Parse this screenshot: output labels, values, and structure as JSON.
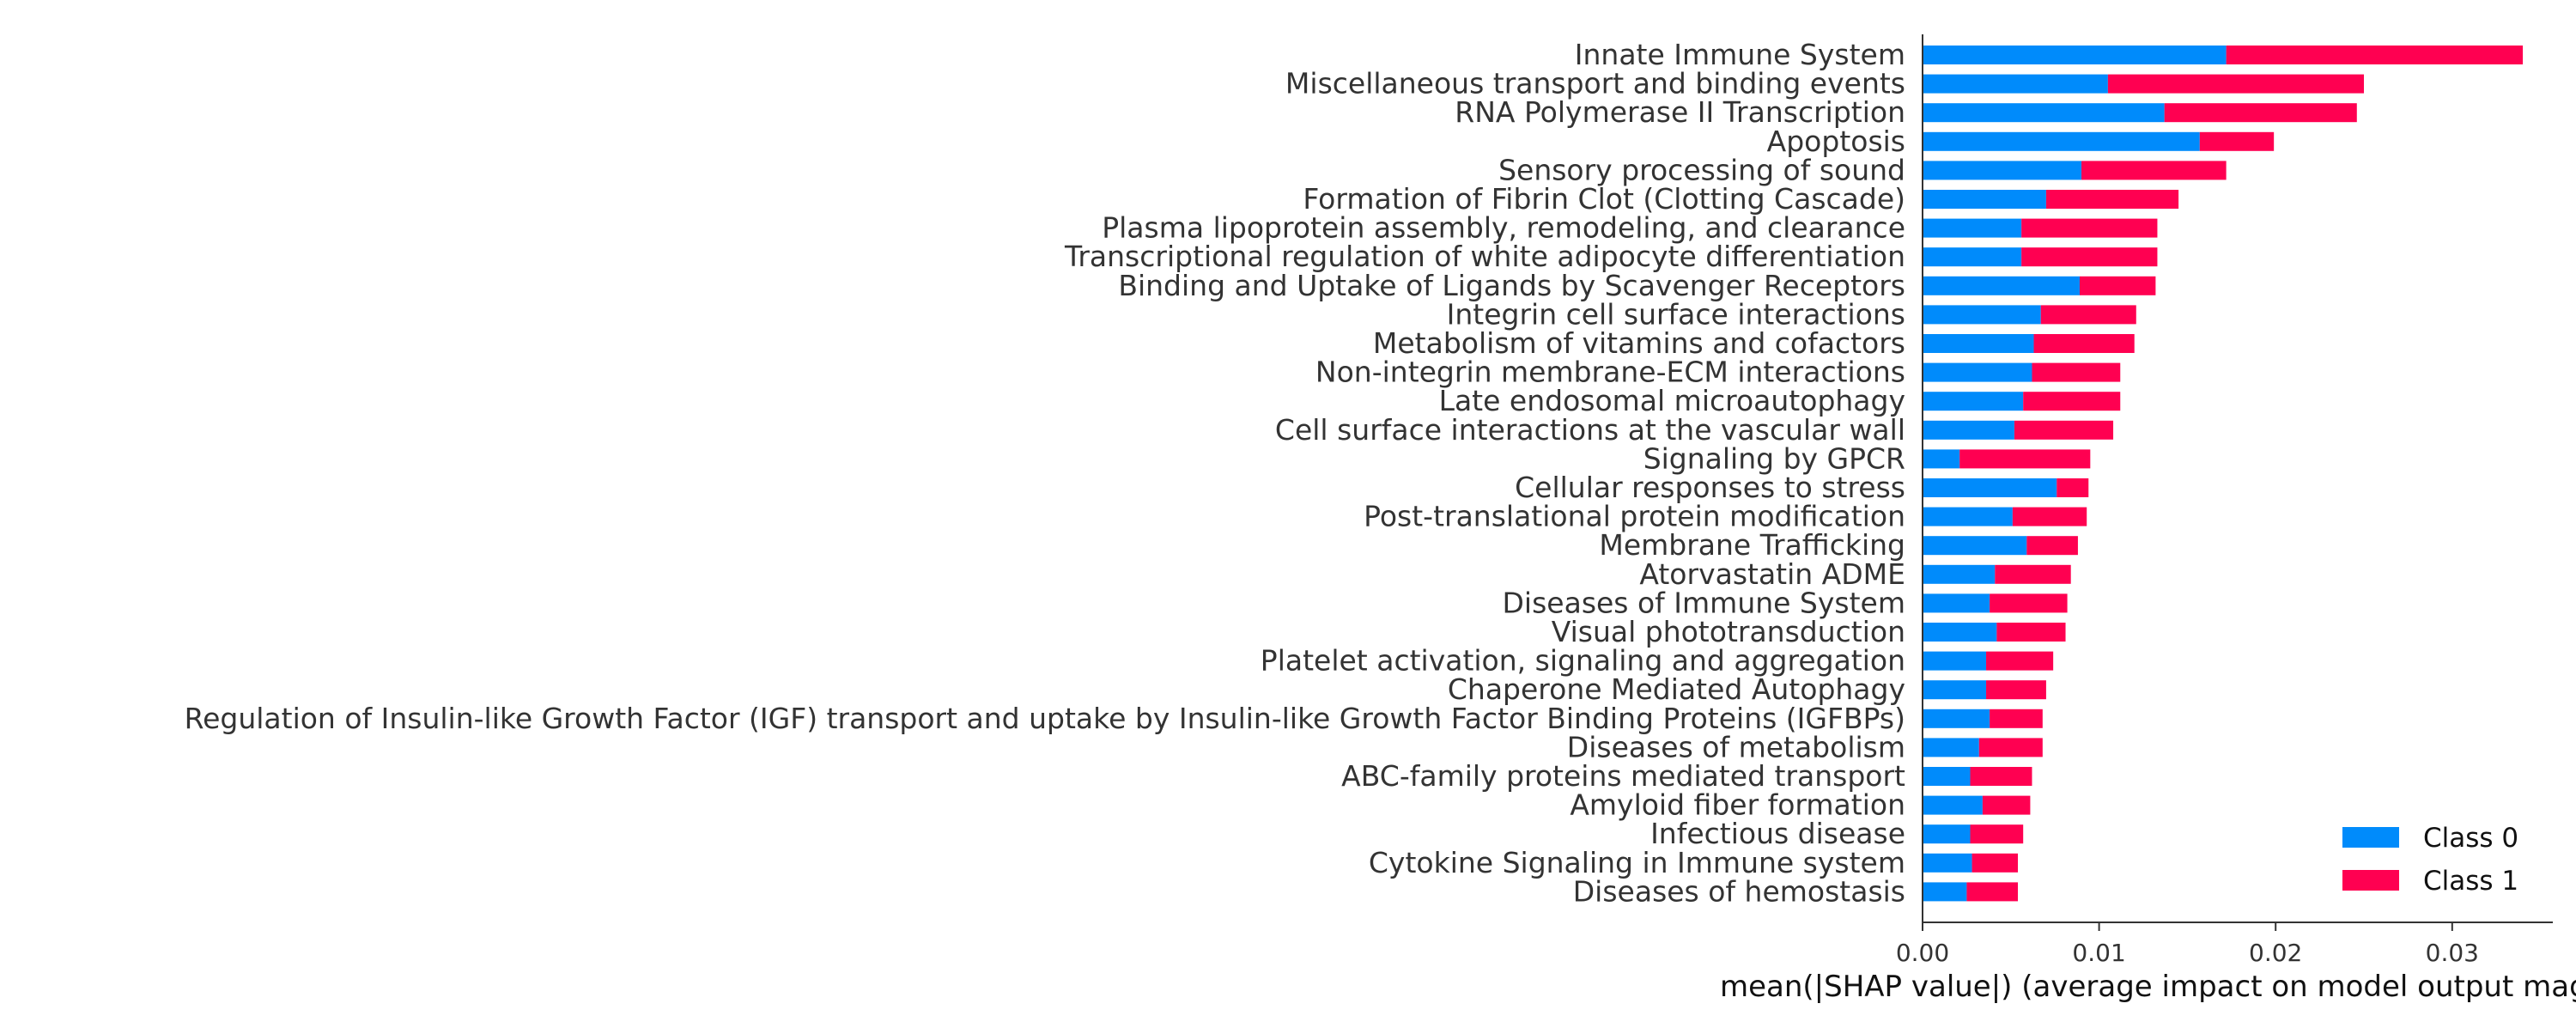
{
  "chart_data": {
    "type": "bar",
    "orientation": "horizontal",
    "stacked": true,
    "categories": [
      "Innate Immune System",
      "Miscellaneous transport and binding events",
      "RNA Polymerase II Transcription",
      "Apoptosis",
      "Sensory processing of sound",
      "Formation of Fibrin Clot (Clotting Cascade)",
      "Plasma lipoprotein assembly, remodeling, and clearance",
      "Transcriptional regulation of white adipocyte differentiation",
      "Binding and Uptake of Ligands by Scavenger Receptors",
      "Integrin cell surface interactions",
      "Metabolism of vitamins and cofactors",
      "Non-integrin membrane-ECM interactions",
      "Late endosomal microautophagy",
      "Cell surface interactions at the vascular wall",
      "Signaling by GPCR",
      "Cellular responses to stress",
      "Post-translational protein modification",
      "Membrane Trafficking",
      "Atorvastatin ADME",
      "Diseases of Immune System",
      "Visual phototransduction",
      "Platelet activation, signaling and aggregation",
      "Chaperone Mediated Autophagy",
      "Regulation of Insulin-like Growth Factor (IGF) transport and uptake by Insulin-like Growth Factor Binding Proteins (IGFBPs)",
      "Diseases of metabolism",
      "ABC-family proteins mediated transport",
      "Amyloid fiber formation",
      "Infectious disease",
      "Cytokine Signaling in Immune system",
      "Diseases of hemostasis"
    ],
    "series": [
      {
        "name": "Class 0",
        "color": "#008bfb",
        "values": [
          0.0172,
          0.0105,
          0.0137,
          0.0157,
          0.009,
          0.007,
          0.0056,
          0.0056,
          0.0089,
          0.0067,
          0.0063,
          0.0062,
          0.0057,
          0.0052,
          0.0021,
          0.0076,
          0.0051,
          0.0059,
          0.0041,
          0.0038,
          0.0042,
          0.0036,
          0.0036,
          0.0038,
          0.0032,
          0.0027,
          0.0034,
          0.0027,
          0.0028,
          0.0025
        ]
      },
      {
        "name": "Class 1",
        "color": "#ff0051",
        "values": [
          0.0168,
          0.0145,
          0.0109,
          0.0042,
          0.0082,
          0.0075,
          0.0077,
          0.0077,
          0.0043,
          0.0054,
          0.0057,
          0.005,
          0.0055,
          0.0056,
          0.0074,
          0.0018,
          0.0042,
          0.0029,
          0.0043,
          0.0044,
          0.0039,
          0.0038,
          0.0034,
          0.003,
          0.0036,
          0.0035,
          0.0027,
          0.003,
          0.0026,
          0.0029
        ]
      }
    ],
    "xlabel": "mean(|SHAP value|) (average impact on model output magnitude)",
    "ylabel": "",
    "xlim": [
      0,
      0.0357
    ],
    "xticks": [
      0.0,
      0.01,
      0.02,
      0.03
    ],
    "xtick_labels": [
      "0.00",
      "0.01",
      "0.02",
      "0.03"
    ],
    "grid": false,
    "legend_position": "lower-right",
    "axis_color": "#333333",
    "label_color": "#333333"
  }
}
